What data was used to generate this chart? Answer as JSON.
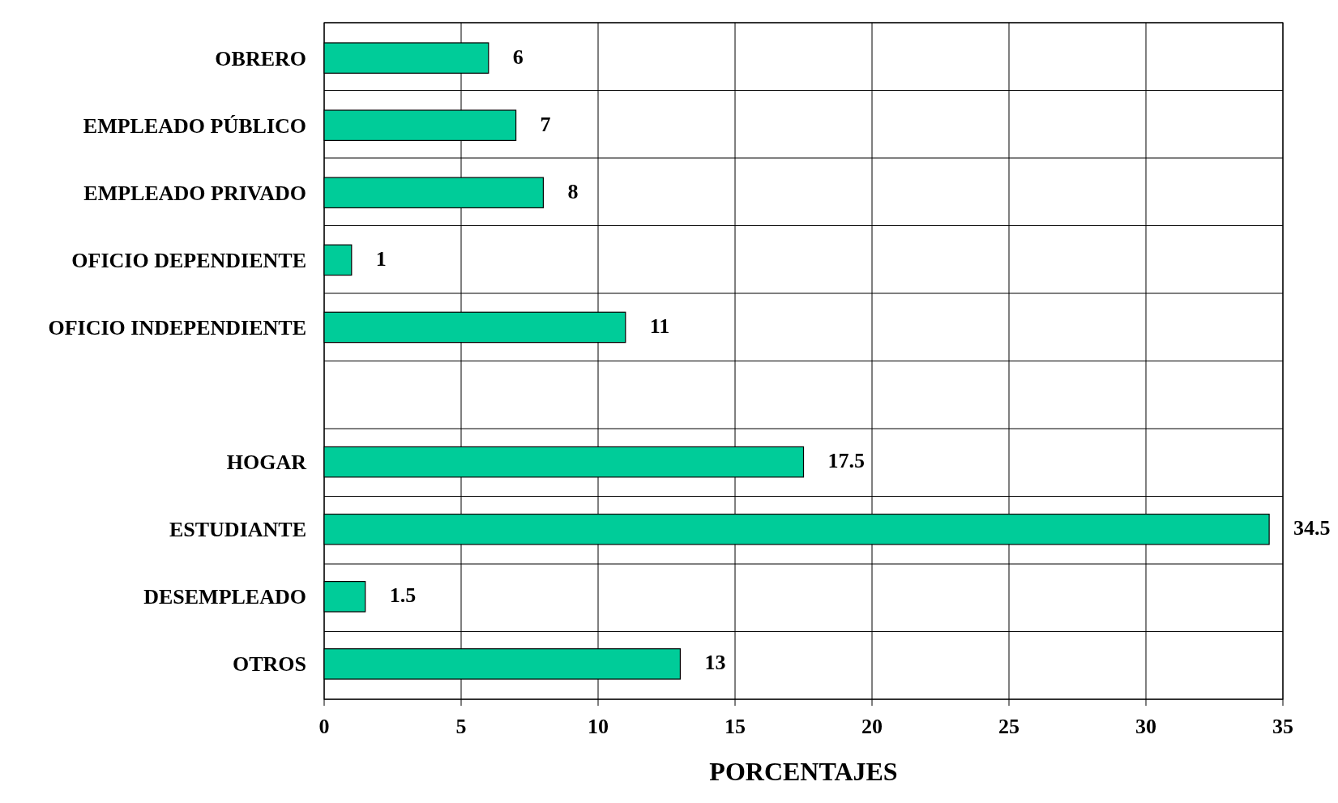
{
  "chart_data": {
    "type": "bar",
    "orientation": "horizontal",
    "categories": [
      "OBRERO",
      "EMPLEADO PÚBLICO",
      "EMPLEADO PRIVADO",
      "OFICIO DEPENDIENTE",
      "OFICIO INDEPENDIENTE",
      null,
      "HOGAR",
      "ESTUDIANTE",
      "DESEMPLEADO",
      "OTROS"
    ],
    "values": [
      6,
      7,
      8,
      1,
      11,
      null,
      17.5,
      34.5,
      1.5,
      13
    ],
    "color": "#00cc99",
    "xlim": [
      0,
      35
    ],
    "xticks": [
      0,
      5,
      10,
      15,
      20,
      25,
      30,
      35
    ],
    "xlabel": "PORCENTAJES",
    "grid": true,
    "data_labels": true
  }
}
